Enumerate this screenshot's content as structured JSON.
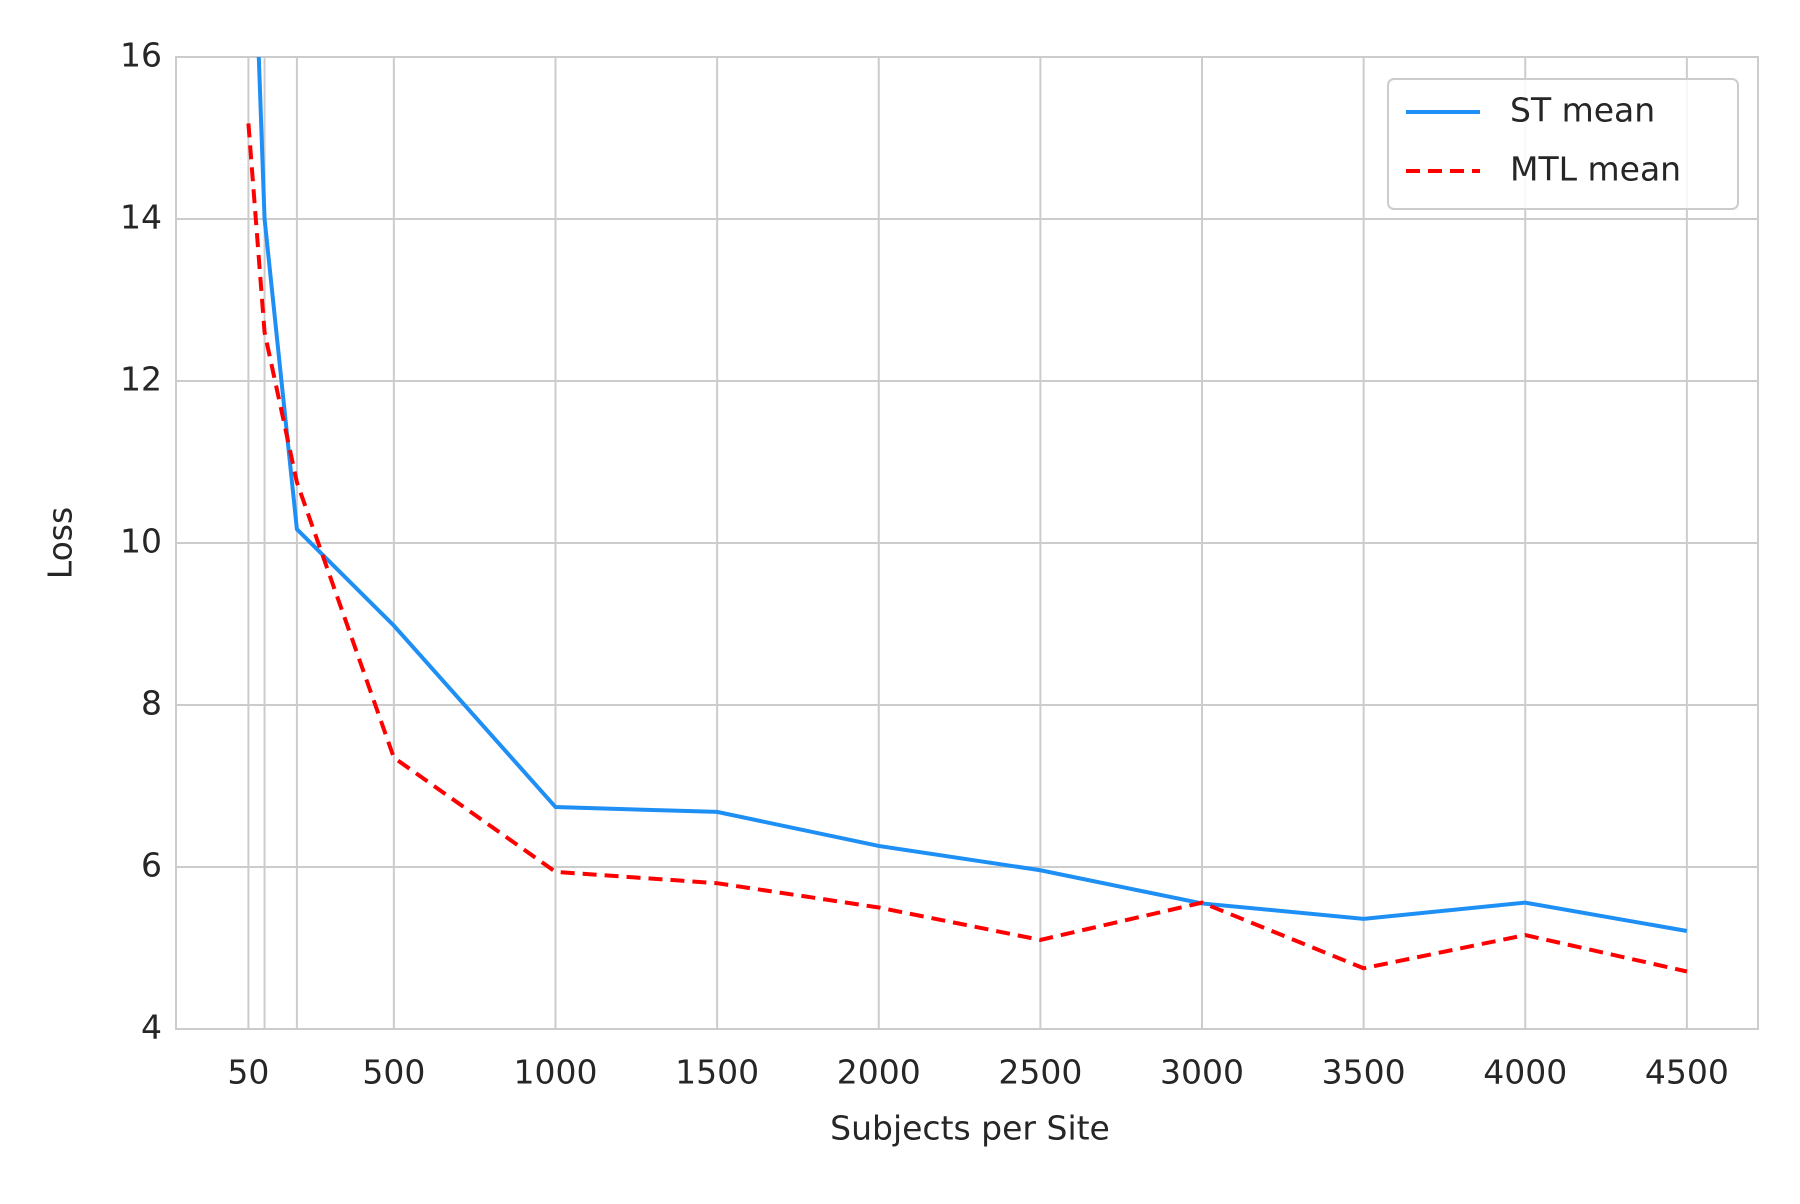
{
  "chart_data": {
    "type": "line",
    "xlabel": "Subjects per Site",
    "ylabel": "Loss",
    "x": [
      50,
      100,
      200,
      500,
      1000,
      1500,
      2000,
      2500,
      3000,
      3500,
      4000,
      4500
    ],
    "series": [
      {
        "name": "ST mean",
        "color": "#1e8ff5",
        "dash": "solid",
        "values": [
          19.6,
          14.0,
          10.17,
          8.98,
          6.74,
          6.68,
          6.26,
          5.96,
          5.55,
          5.36,
          5.56,
          5.21
        ]
      },
      {
        "name": "MTL mean",
        "color": "#ff0000",
        "dash": "dashed",
        "values": [
          15.18,
          12.6,
          10.75,
          7.35,
          5.94,
          5.8,
          5.5,
          5.1,
          5.56,
          4.75,
          5.16,
          4.71
        ]
      }
    ],
    "xlim": [
      -174,
      4720
    ],
    "xticks": [
      50,
      500,
      1000,
      1500,
      2000,
      2500,
      3000,
      3500,
      4000,
      4500
    ],
    "xminorgrid": [
      100,
      200
    ],
    "ylim": [
      4,
      16
    ],
    "yticks": [
      4,
      6,
      8,
      10,
      12,
      14,
      16
    ],
    "grid": true,
    "legend": "upper right"
  }
}
